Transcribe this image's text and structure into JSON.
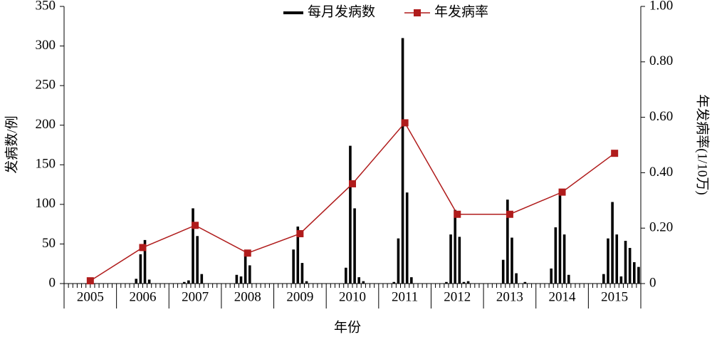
{
  "chart_data": {
    "type": "bar-line",
    "x_label": "年份",
    "y_label": "发病数/例",
    "y2_label": "年发病率(1/10万)",
    "categories": [
      "2005",
      "2006",
      "2007",
      "2008",
      "2009",
      "2010",
      "2011",
      "2012",
      "2013",
      "2014",
      "2015"
    ],
    "series": [
      {
        "name": "每月发病数",
        "type": "bar",
        "color": "#000000",
        "values": [
          [
            0,
            0,
            0,
            0,
            0,
            0,
            0,
            0,
            0,
            0,
            0,
            0
          ],
          [
            0,
            0,
            0,
            0,
            6,
            37,
            55,
            5,
            0,
            0,
            0,
            0
          ],
          [
            0,
            0,
            0,
            2,
            4,
            95,
            60,
            12,
            0,
            0,
            0,
            0
          ],
          [
            0,
            0,
            0,
            11,
            9,
            38,
            23,
            0,
            0,
            0,
            0,
            0
          ],
          [
            0,
            0,
            0,
            0,
            43,
            72,
            26,
            3,
            0,
            0,
            0,
            0
          ],
          [
            0,
            0,
            0,
            0,
            20,
            174,
            95,
            8,
            3,
            0,
            0,
            0
          ],
          [
            0,
            0,
            0,
            2,
            57,
            310,
            115,
            8,
            0,
            0,
            0,
            0
          ],
          [
            0,
            0,
            0,
            2,
            62,
            93,
            59,
            2,
            3,
            0,
            0,
            0
          ],
          [
            0,
            0,
            0,
            0,
            30,
            106,
            58,
            13,
            0,
            2,
            0,
            0
          ],
          [
            0,
            0,
            0,
            19,
            71,
            115,
            62,
            11,
            0,
            0,
            0,
            0
          ],
          [
            0,
            0,
            0,
            12,
            57,
            103,
            62,
            9,
            54,
            45,
            27,
            21
          ]
        ]
      },
      {
        "name": "年发病率",
        "type": "line",
        "axis": "y2",
        "color": "#b01c1c",
        "values": [
          0.01,
          0.13,
          0.21,
          0.11,
          0.18,
          0.36,
          0.58,
          0.25,
          0.25,
          0.33,
          0.47
        ]
      }
    ],
    "ylim": [
      0,
      350
    ],
    "yticks": [
      0,
      50,
      100,
      150,
      200,
      250,
      300,
      350
    ],
    "y2lim": [
      0,
      1
    ],
    "y2ticks": [
      0,
      {
        "value": 0.2,
        "label": "0.20"
      },
      {
        "value": 0.4,
        "label": "0.40"
      },
      {
        "value": 0.6,
        "label": "0.60"
      },
      {
        "value": 0.8,
        "label": "0.80"
      },
      {
        "value": 1,
        "label": "1.00"
      }
    ],
    "legend": "top"
  }
}
